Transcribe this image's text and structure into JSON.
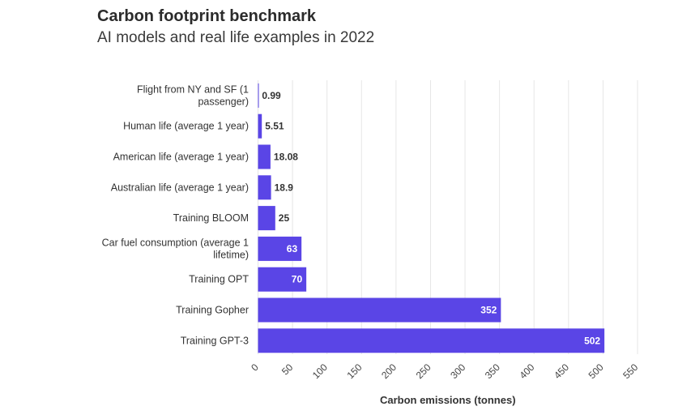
{
  "header": {
    "title": "Carbon footprint benchmark",
    "subtitle": "AI models and real life examples in 2022"
  },
  "colors": {
    "bar": "#5a45e6",
    "grid": "#e6e6e6",
    "label_outside": "#333333",
    "label_inside": "#ffffff"
  },
  "chart_data": {
    "type": "bar",
    "orientation": "horizontal",
    "title": "Carbon footprint benchmark",
    "subtitle": "AI models and real life examples in 2022",
    "xlabel": "Carbon emissions (tonnes)",
    "ylabel": "",
    "xlim": [
      0,
      550
    ],
    "xticks": [
      0,
      50,
      100,
      150,
      200,
      250,
      300,
      350,
      400,
      450,
      500,
      550
    ],
    "grid": true,
    "categories": [
      "Flight from NY and SF (1 passenger)",
      "Human life (average 1 year)",
      "American life (average 1 year)",
      "Australian life (average 1 year)",
      "Training BLOOM",
      "Car fuel consumption (average 1 lifetime)",
      "Training OPT",
      "Training Gopher",
      "Training GPT-3"
    ],
    "category_lines": [
      [
        "Flight from NY and SF (1",
        "passenger)"
      ],
      [
        "Human life (average 1 year)"
      ],
      [
        "American life (average 1 year)"
      ],
      [
        "Australian life (average 1 year)"
      ],
      [
        "Training BLOOM"
      ],
      [
        "Car fuel consumption (average 1",
        "lifetime)"
      ],
      [
        "Training OPT"
      ],
      [
        "Training Gopher"
      ],
      [
        "Training GPT-3"
      ]
    ],
    "values": [
      0.99,
      5.51,
      18.08,
      18.9,
      25,
      63,
      70,
      352,
      502
    ],
    "value_labels": [
      "0.99",
      "5.51",
      "18.08",
      "18.9",
      "25",
      "63",
      "70",
      "352",
      "502"
    ]
  }
}
